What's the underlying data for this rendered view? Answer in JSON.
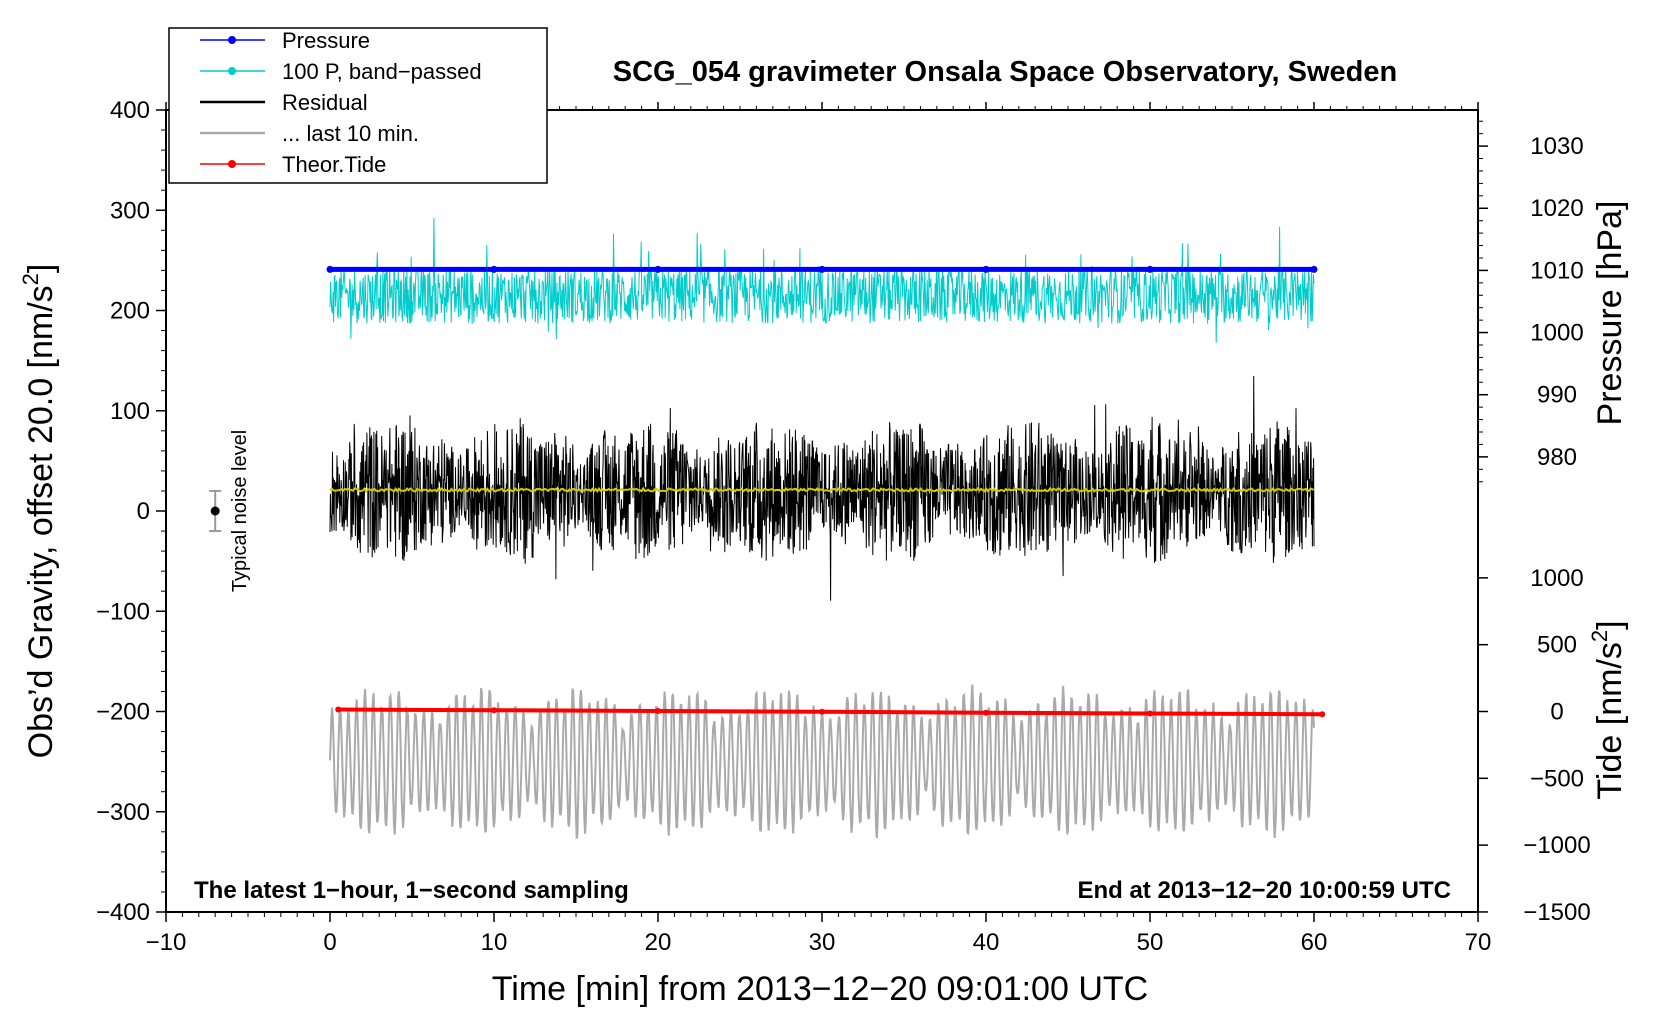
{
  "chart_data": {
    "type": "line",
    "title": "SCG_054 gravimeter Onsala Space Observatory, Sweden",
    "xlabel": "Time [min] from 2013−12−20 09:01:00 UTC",
    "ylabel_left": "Obs’d Gravity, offset 20.0 [nm/s²]",
    "ylabel_left_parts": {
      "main": "Obs’d Gravity, offset 20.0 [nm/s",
      "sup": "2",
      "end": "]"
    },
    "ylabel_right_pressure": "Pressure [hPa]",
    "ylabel_right_tide": "Tide [nm/s²]",
    "ylabel_right_tide_parts": {
      "main": "Tide [nm/s",
      "sup": "2",
      "end": "]"
    },
    "xlim": [
      -10,
      70
    ],
    "ylim_left": [
      -400,
      400
    ],
    "x_ticks": [
      -10,
      0,
      10,
      20,
      30,
      40,
      50,
      60,
      70
    ],
    "x_tick_labels": [
      "−10",
      "0",
      "10",
      "20",
      "30",
      "40",
      "50",
      "60",
      "70"
    ],
    "y_left_ticks": [
      -400,
      -300,
      -200,
      -100,
      0,
      100,
      200,
      300,
      400
    ],
    "y_left_tick_labels": [
      "−400",
      "−300",
      "−200",
      "−100",
      "0",
      "100",
      "200",
      "300",
      "400"
    ],
    "pressure_axis": {
      "ticks": [
        980,
        990,
        1000,
        1010,
        1020,
        1030
      ],
      "tick_labels": [
        "980",
        "990",
        "1000",
        "1010",
        "1020",
        "1030"
      ],
      "ref_value": 1010,
      "ref_gravity": 240,
      "gravity_per_unit": 6.2
    },
    "tide_axis": {
      "ticks": [
        -1500,
        -1000,
        -500,
        0,
        500,
        1000
      ],
      "tick_labels": [
        "−1500",
        "−1000",
        "−500",
        "0",
        "500",
        "1000"
      ],
      "ref_value": 0,
      "ref_gravity": -200,
      "gravity_per_unit": 0.1333
    },
    "series": [
      {
        "name": "Pressure",
        "legend": "Pressure",
        "color": "#0000ff",
        "style": "line-marker",
        "x": [
          0,
          10,
          20,
          30,
          40,
          50,
          60
        ],
        "y": [
          241,
          241,
          241,
          241,
          241,
          241,
          241
        ]
      },
      {
        "name": "100 P, band-passed",
        "legend": "100 P, band−passed",
        "color": "#00cccc",
        "style": "line-marker",
        "x_range": [
          0,
          60
        ],
        "center": 215,
        "spread": 28
      },
      {
        "name": "Residual",
        "legend": "Residual",
        "color": "#000000",
        "style": "line",
        "x_range": [
          0,
          60
        ],
        "center": 20,
        "spread": 55
      },
      {
        "name": "... last 10 min.",
        "legend": "... last 10 min.",
        "color": "#aaaaaa",
        "style": "line",
        "x_range": [
          0,
          60
        ],
        "center": -250,
        "spread": 55
      },
      {
        "name": "Theor.Tide",
        "legend": "Theor.Tide",
        "color": "#ff0000",
        "style": "line-marker",
        "x": [
          0.5,
          10,
          20,
          30,
          40,
          50,
          60.5
        ],
        "y": [
          -198,
          -198.7,
          -199.5,
          -200.3,
          -201.2,
          -202,
          -202.8
        ]
      },
      {
        "name": "Residual smoothed",
        "color": "#cccc00",
        "style": "line",
        "x_range": [
          0,
          60
        ],
        "center": 21,
        "spread": 1.5
      }
    ],
    "noise_level": {
      "label": "Typical noise level",
      "x": -7,
      "y": 0,
      "err": 20
    },
    "notes": {
      "left": "The latest 1−hour, 1−second sampling",
      "right": "End at 2013−12−20 10:00:59 UTC"
    },
    "legend_position": "top-left"
  }
}
